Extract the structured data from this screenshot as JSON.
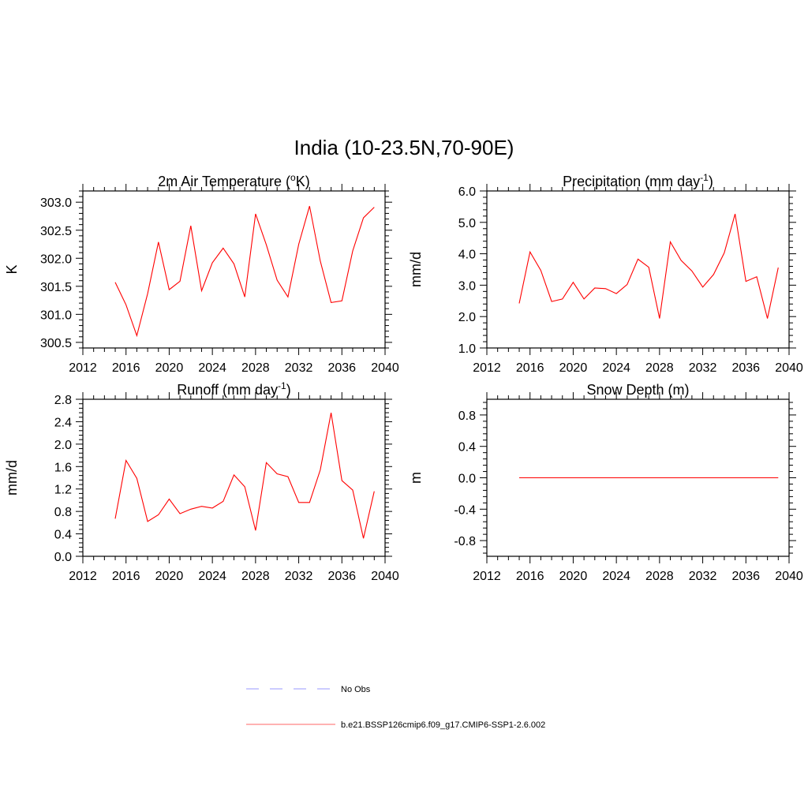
{
  "figure": {
    "title": "India (10-23.5N,70-90E)"
  },
  "colors": {
    "model_line": "#ff0000",
    "obs_line": "#9999ff",
    "axes": "#000000"
  },
  "legend": {
    "placement": "bottom-center",
    "entries": [
      {
        "label": "No Obs",
        "style": "dashed",
        "color": "#9999ff"
      },
      {
        "label": "b.e21.BSSP126cmip6.f09_g17.CMIP6-SSP1-2.6.002",
        "style": "solid",
        "color": "#ff6666"
      }
    ]
  },
  "chart_data": [
    {
      "type": "line",
      "title": "2m Air Temperature (oK)",
      "title_main": "2m Air Temperature (",
      "title_sup": "o",
      "title_end": "K)",
      "xlabel": "",
      "ylabel": "K",
      "xlim": [
        2012,
        2040
      ],
      "ylim": [
        300.4,
        303.2
      ],
      "xticks": [
        2012,
        2016,
        2020,
        2024,
        2028,
        2032,
        2036,
        2040
      ],
      "yticks": [
        300.5,
        301.0,
        301.5,
        302.0,
        302.5,
        303.0
      ],
      "ytick_labels": [
        "300.5",
        "301.0",
        "301.5",
        "302.0",
        "302.5",
        "303.0"
      ],
      "grid": false,
      "series": [
        {
          "name": "b.e21.BSSP126cmip6.f09_g17.CMIP6-SSP1-2.6.002",
          "x": [
            2015,
            2016,
            2017,
            2018,
            2019,
            2020,
            2021,
            2022,
            2023,
            2024,
            2025,
            2026,
            2027,
            2028,
            2029,
            2030,
            2031,
            2032,
            2033,
            2034,
            2035,
            2036,
            2037,
            2038,
            2039
          ],
          "y": [
            301.57,
            301.17,
            300.62,
            301.37,
            302.29,
            301.44,
            301.59,
            302.58,
            301.42,
            301.92,
            302.18,
            301.9,
            301.31,
            302.79,
            302.24,
            301.61,
            301.31,
            302.25,
            302.93,
            301.95,
            301.21,
            301.24,
            302.13,
            302.72,
            302.91
          ]
        }
      ]
    },
    {
      "type": "line",
      "title": "Precipitation (mm day-1)",
      "title_main": "Precipitation (mm day",
      "title_sup": "-1",
      "title_end": ")",
      "xlabel": "",
      "ylabel": "mm/d",
      "xlim": [
        2012,
        2040
      ],
      "ylim": [
        1.0,
        6.0
      ],
      "xticks": [
        2012,
        2016,
        2020,
        2024,
        2028,
        2032,
        2036,
        2040
      ],
      "yticks": [
        1.0,
        2.0,
        3.0,
        4.0,
        5.0,
        6.0
      ],
      "ytick_labels": [
        "1.0",
        "2.0",
        "3.0",
        "4.0",
        "5.0",
        "6.0"
      ],
      "grid": false,
      "series": [
        {
          "name": "b.e21.BSSP126cmip6.f09_g17.CMIP6-SSP1-2.6.002",
          "x": [
            2015,
            2016,
            2017,
            2018,
            2019,
            2020,
            2021,
            2022,
            2023,
            2024,
            2025,
            2026,
            2027,
            2028,
            2029,
            2030,
            2031,
            2032,
            2033,
            2034,
            2035,
            2036,
            2037,
            2038,
            2039
          ],
          "y": [
            2.42,
            4.06,
            3.47,
            2.48,
            2.56,
            3.09,
            2.56,
            2.91,
            2.89,
            2.73,
            3.02,
            3.83,
            3.57,
            1.94,
            4.38,
            3.79,
            3.45,
            2.94,
            3.34,
            4.03,
            5.27,
            3.12,
            3.27,
            1.94,
            3.56
          ]
        }
      ]
    },
    {
      "type": "line",
      "title": "Runoff (mm day-1)",
      "title_main": "Runoff (mm day",
      "title_sup": "-1",
      "title_end": ")",
      "xlabel": "",
      "ylabel": "mm/d",
      "xlim": [
        2012,
        2040
      ],
      "ylim": [
        0.0,
        2.8
      ],
      "xticks": [
        2012,
        2016,
        2020,
        2024,
        2028,
        2032,
        2036,
        2040
      ],
      "yticks": [
        0.0,
        0.4,
        0.8,
        1.2,
        1.6,
        2.0,
        2.4,
        2.8
      ],
      "ytick_labels": [
        "0.0",
        "0.4",
        "0.8",
        "1.2",
        "1.6",
        "2.0",
        "2.4",
        "2.8"
      ],
      "grid": false,
      "series": [
        {
          "name": "b.e21.BSSP126cmip6.f09_g17.CMIP6-SSP1-2.6.002",
          "x": [
            2015,
            2016,
            2017,
            2018,
            2019,
            2020,
            2021,
            2022,
            2023,
            2024,
            2025,
            2026,
            2027,
            2028,
            2029,
            2030,
            2031,
            2032,
            2033,
            2034,
            2035,
            2036,
            2037,
            2038,
            2039
          ],
          "y": [
            0.67,
            1.71,
            1.39,
            0.62,
            0.74,
            1.02,
            0.76,
            0.84,
            0.89,
            0.86,
            0.98,
            1.45,
            1.24,
            0.46,
            1.67,
            1.47,
            1.42,
            0.96,
            0.96,
            1.54,
            2.56,
            1.35,
            1.18,
            0.32,
            1.16
          ]
        }
      ]
    },
    {
      "type": "line",
      "title": "Snow Depth (m)",
      "title_main": "Snow Depth (m)",
      "title_sup": "",
      "title_end": "",
      "xlabel": "",
      "ylabel": "m",
      "xlim": [
        2012,
        2040
      ],
      "ylim": [
        -1.0,
        1.0
      ],
      "xticks": [
        2012,
        2016,
        2020,
        2024,
        2028,
        2032,
        2036,
        2040
      ],
      "yticks": [
        -0.8,
        -0.4,
        0.0,
        0.4,
        0.8
      ],
      "ytick_labels": [
        "-0.8",
        "-0.4",
        "0.0",
        "0.4",
        "0.8"
      ],
      "grid": false,
      "series": [
        {
          "name": "b.e21.BSSP126cmip6.f09_g17.CMIP6-SSP1-2.6.002",
          "x": [
            2015,
            2039
          ],
          "y": [
            0.0,
            0.0
          ]
        }
      ]
    }
  ]
}
